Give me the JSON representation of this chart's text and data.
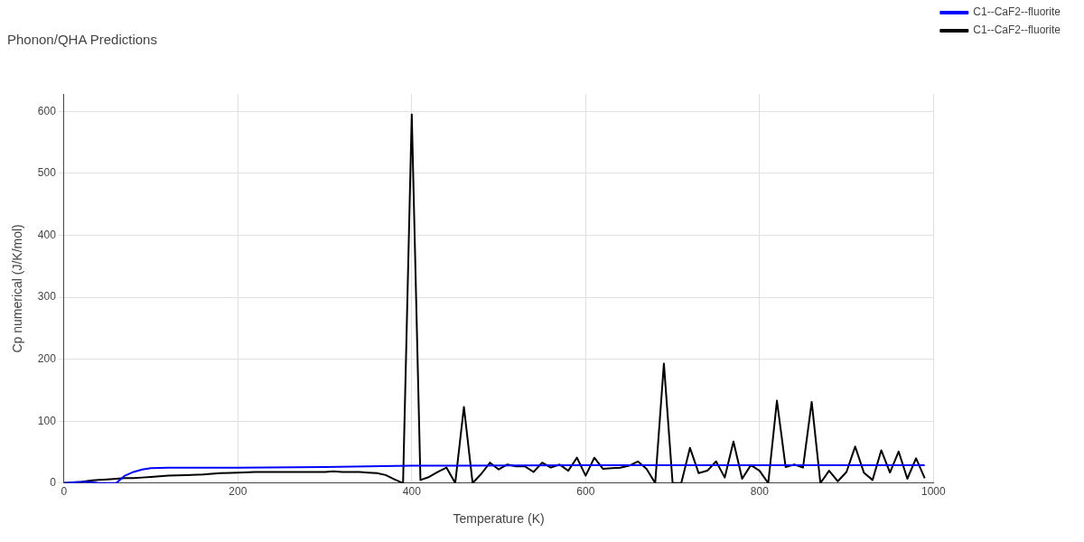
{
  "chart_data": {
    "type": "line",
    "title": "Phonon/QHA Predictions",
    "xlabel": "Temperature (K)",
    "ylabel": "Cp numerical (J/K/mol)",
    "xlim": [
      0,
      1000
    ],
    "xticks": [
      0,
      200,
      400,
      600,
      800,
      1000
    ],
    "ylim": [
      0,
      628
    ],
    "yticks": [
      0,
      100,
      200,
      300,
      400,
      500,
      600
    ],
    "grid": true,
    "legend": "top right",
    "marker": "none",
    "line_style": "solid",
    "series": [
      {
        "name": "C1--CaF2--fluorite",
        "color": "#000000",
        "x": [
          0,
          10,
          20,
          30,
          40,
          50,
          60,
          70,
          80,
          90,
          100,
          120,
          140,
          160,
          180,
          200,
          220,
          240,
          260,
          280,
          300,
          310,
          320,
          330,
          340,
          350,
          360,
          370,
          380,
          390,
          400,
          410,
          420,
          430,
          440,
          450,
          460,
          470,
          480,
          490,
          500,
          510,
          520,
          530,
          540,
          550,
          560,
          570,
          580,
          590,
          600,
          610,
          620,
          630,
          640,
          650,
          660,
          670,
          680,
          690,
          700,
          710,
          720,
          730,
          740,
          750,
          760,
          770,
          780,
          790,
          800,
          810,
          820,
          830,
          840,
          850,
          860,
          870,
          880,
          890,
          900,
          910,
          920,
          930,
          940,
          950,
          960,
          970,
          980,
          990
        ],
        "values": [
          0,
          1,
          2,
          4,
          5,
          6,
          7,
          8,
          8,
          9,
          10,
          12,
          13,
          14,
          16,
          17,
          18,
          18,
          18,
          18,
          18,
          19,
          18,
          18,
          18,
          17,
          16,
          13,
          6,
          0,
          595,
          5,
          10,
          18,
          25,
          0,
          123,
          0,
          15,
          33,
          22,
          30,
          27,
          27,
          18,
          33,
          25,
          30,
          20,
          41,
          12,
          41,
          23,
          24,
          25,
          28,
          35,
          23,
          0,
          193,
          0,
          0,
          57,
          16,
          20,
          35,
          9,
          67,
          7,
          29,
          20,
          0,
          133,
          26,
          30,
          25,
          131,
          0,
          20,
          3,
          18,
          59,
          17,
          5,
          53,
          17,
          51,
          7,
          40,
          8
        ]
      },
      {
        "name": "C1--CaF2--fluorite",
        "color": "#0000ff",
        "x": [
          0,
          10,
          20,
          30,
          40,
          60,
          70,
          80,
          90,
          100,
          120,
          200,
          300,
          400,
          600,
          800,
          990
        ],
        "values": [
          0,
          1,
          2,
          2,
          0,
          0,
          12,
          18,
          22,
          24,
          25,
          25,
          26,
          28,
          29,
          29,
          29
        ]
      }
    ]
  }
}
